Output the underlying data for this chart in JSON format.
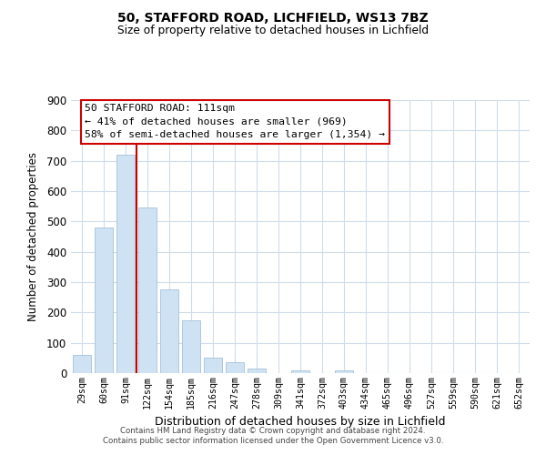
{
  "title": "50, STAFFORD ROAD, LICHFIELD, WS13 7BZ",
  "subtitle": "Size of property relative to detached houses in Lichfield",
  "xlabel": "Distribution of detached houses by size in Lichfield",
  "ylabel": "Number of detached properties",
  "bar_labels": [
    "29sqm",
    "60sqm",
    "91sqm",
    "122sqm",
    "154sqm",
    "185sqm",
    "216sqm",
    "247sqm",
    "278sqm",
    "309sqm",
    "341sqm",
    "372sqm",
    "403sqm",
    "434sqm",
    "465sqm",
    "496sqm",
    "527sqm",
    "559sqm",
    "590sqm",
    "621sqm",
    "652sqm"
  ],
  "bar_values": [
    60,
    480,
    720,
    545,
    275,
    175,
    50,
    35,
    15,
    0,
    10,
    0,
    8,
    0,
    0,
    0,
    0,
    0,
    0,
    0,
    0
  ],
  "bar_color": "#cfe2f3",
  "bar_edge_color": "#a4c2d8",
  "vline_x": 2.5,
  "vline_color": "#cc0000",
  "ylim": [
    0,
    900
  ],
  "yticks": [
    0,
    100,
    200,
    300,
    400,
    500,
    600,
    700,
    800,
    900
  ],
  "annotation_title": "50 STAFFORD ROAD: 111sqm",
  "annotation_line1": "← 41% of detached houses are smaller (969)",
  "annotation_line2": "58% of semi-detached houses are larger (1,354) →",
  "footer_line1": "Contains HM Land Registry data © Crown copyright and database right 2024.",
  "footer_line2": "Contains public sector information licensed under the Open Government Licence v3.0.",
  "background_color": "#ffffff",
  "grid_color": "#d0dcea"
}
